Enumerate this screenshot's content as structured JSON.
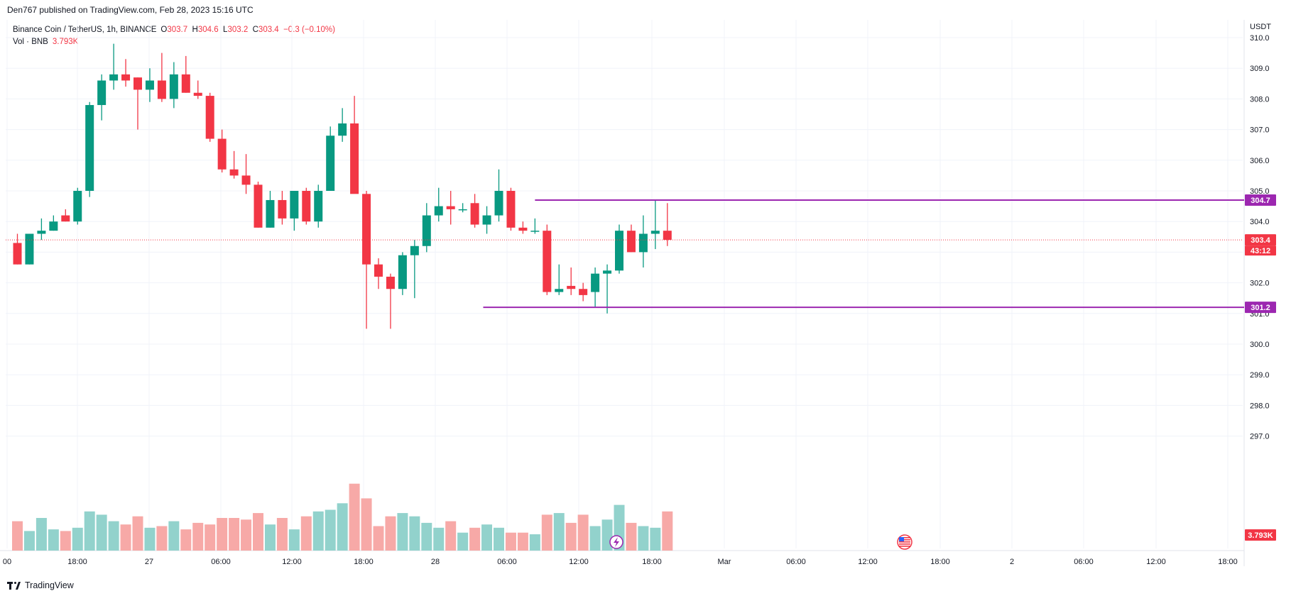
{
  "header": {
    "caption": "Den767 published on TradingView.com, Feb 28, 2023 15:16 UTC"
  },
  "legend": {
    "symbol": "Binance Coin / TetherUS, 1h, BINANCE",
    "o_label": "O",
    "o_value": "303.7",
    "h_label": "H",
    "h_value": "304.6",
    "l_label": "L",
    "l_value": "303.2",
    "c_label": "C",
    "c_value": "303.4",
    "change": "−0.3 (−0.10%)",
    "vol_label": "Vol · BNB",
    "vol_value": "3.793K"
  },
  "price_axis": {
    "currency": "USDT",
    "ticks": [
      "310.0",
      "309.0",
      "308.0",
      "307.0",
      "306.0",
      "305.0",
      "304.0",
      "303.0",
      "302.0",
      "301.0",
      "300.0",
      "299.0",
      "298.0",
      "297.0"
    ],
    "last_price_label": "303.4",
    "countdown_label": "43:12",
    "volume_label": "3.793K",
    "level_high_label": "304.7",
    "level_low_label": "301.2"
  },
  "time_axis": {
    "ticks": [
      "00",
      "18:00",
      "27",
      "06:00",
      "12:00",
      "18:00",
      "28",
      "06:00",
      "12:00",
      "18:00",
      "Mar",
      "06:00",
      "12:00",
      "18:00",
      "2",
      "06:00",
      "12:00",
      "18:00"
    ]
  },
  "footer": {
    "brand": "TradingView"
  },
  "colors": {
    "up": "#089981",
    "down": "#f23645",
    "vol_up": "#92d2cc",
    "vol_down": "#f7a9a7",
    "level": "#9c27b0",
    "grid": "#f0f3fa"
  },
  "chart_data": {
    "type": "candlestick",
    "symbol": "Binance Coin / TetherUS",
    "interval": "1h",
    "exchange": "BINANCE",
    "ylim": [
      296.0,
      310.5
    ],
    "ohlc": [
      [
        303.3,
        303.6,
        302.6,
        302.6
      ],
      [
        302.6,
        303.6,
        302.6,
        303.6
      ],
      [
        303.6,
        304.1,
        303.4,
        303.7
      ],
      [
        303.7,
        304.2,
        303.7,
        304.0
      ],
      [
        304.2,
        304.4,
        304.0,
        304.0
      ],
      [
        304.0,
        305.1,
        303.9,
        305.0
      ],
      [
        305.0,
        307.9,
        304.8,
        307.8
      ],
      [
        307.8,
        308.8,
        307.3,
        308.6
      ],
      [
        308.6,
        309.8,
        308.3,
        308.8
      ],
      [
        308.8,
        309.3,
        308.4,
        308.6
      ],
      [
        308.7,
        308.7,
        307.0,
        308.3
      ],
      [
        308.3,
        309.0,
        307.9,
        308.6
      ],
      [
        308.6,
        309.5,
        307.9,
        308.0
      ],
      [
        308.0,
        309.2,
        307.7,
        308.8
      ],
      [
        308.8,
        309.4,
        308.2,
        308.2
      ],
      [
        308.2,
        308.6,
        308.0,
        308.1
      ],
      [
        308.1,
        308.2,
        306.6,
        306.7
      ],
      [
        306.7,
        307.0,
        305.6,
        305.7
      ],
      [
        305.7,
        306.3,
        305.4,
        305.5
      ],
      [
        305.5,
        306.2,
        304.9,
        305.2
      ],
      [
        305.2,
        305.3,
        303.8,
        303.8
      ],
      [
        303.8,
        305.0,
        303.8,
        304.7
      ],
      [
        304.7,
        305.0,
        303.9,
        304.1
      ],
      [
        304.1,
        305.0,
        303.7,
        305.0
      ],
      [
        305.0,
        305.1,
        303.9,
        304.0
      ],
      [
        304.0,
        305.2,
        303.8,
        305.0
      ],
      [
        305.0,
        307.1,
        305.0,
        306.8
      ],
      [
        306.8,
        307.7,
        306.6,
        307.2
      ],
      [
        307.2,
        308.1,
        305.0,
        304.9
      ],
      [
        304.9,
        305.0,
        300.5,
        302.6
      ],
      [
        302.6,
        302.8,
        301.8,
        302.2
      ],
      [
        302.2,
        302.3,
        300.5,
        301.8
      ],
      [
        301.8,
        303.0,
        301.6,
        302.9
      ],
      [
        302.9,
        303.4,
        301.5,
        303.2
      ],
      [
        303.2,
        304.6,
        303.0,
        304.2
      ],
      [
        304.2,
        305.1,
        304.0,
        304.5
      ],
      [
        304.5,
        305.0,
        303.9,
        304.4
      ],
      [
        304.4,
        304.6,
        304.3,
        304.4
      ],
      [
        304.6,
        304.9,
        303.8,
        303.9
      ],
      [
        303.9,
        304.5,
        303.6,
        304.2
      ],
      [
        304.2,
        305.7,
        304.0,
        305.0
      ],
      [
        305.0,
        305.1,
        303.7,
        303.8
      ],
      [
        303.8,
        304.0,
        303.6,
        303.7
      ],
      [
        303.7,
        304.1,
        303.6,
        303.7
      ],
      [
        303.7,
        303.9,
        301.6,
        301.7
      ],
      [
        301.7,
        302.6,
        301.6,
        301.8
      ],
      [
        301.9,
        302.5,
        301.6,
        301.8
      ],
      [
        301.8,
        302.0,
        301.4,
        301.6
      ],
      [
        301.7,
        302.5,
        301.2,
        302.3
      ],
      [
        302.3,
        302.6,
        301.0,
        302.4
      ],
      [
        302.4,
        303.9,
        302.3,
        303.7
      ],
      [
        303.7,
        303.9,
        303.0,
        303.0
      ],
      [
        303.0,
        304.2,
        302.5,
        303.6
      ],
      [
        303.6,
        304.7,
        303.1,
        303.7
      ],
      [
        303.7,
        304.6,
        303.2,
        303.4
      ]
    ],
    "volume": [
      18,
      12,
      20,
      13,
      12,
      14,
      24,
      22,
      18,
      16,
      21,
      14,
      15,
      18,
      13,
      17,
      16,
      20,
      20,
      19,
      23,
      16,
      20,
      13,
      21,
      24,
      25,
      29,
      41,
      32,
      15,
      21,
      23,
      21,
      17,
      14,
      18,
      11,
      14,
      16,
      14,
      11,
      11,
      10,
      22,
      23,
      17,
      22,
      15,
      19,
      28,
      17,
      15,
      14,
      24
    ],
    "levels": [
      {
        "price": 304.7,
        "label": "304.7"
      },
      {
        "price": 301.2,
        "label": "301.2"
      }
    ],
    "last_price": 303.4
  }
}
